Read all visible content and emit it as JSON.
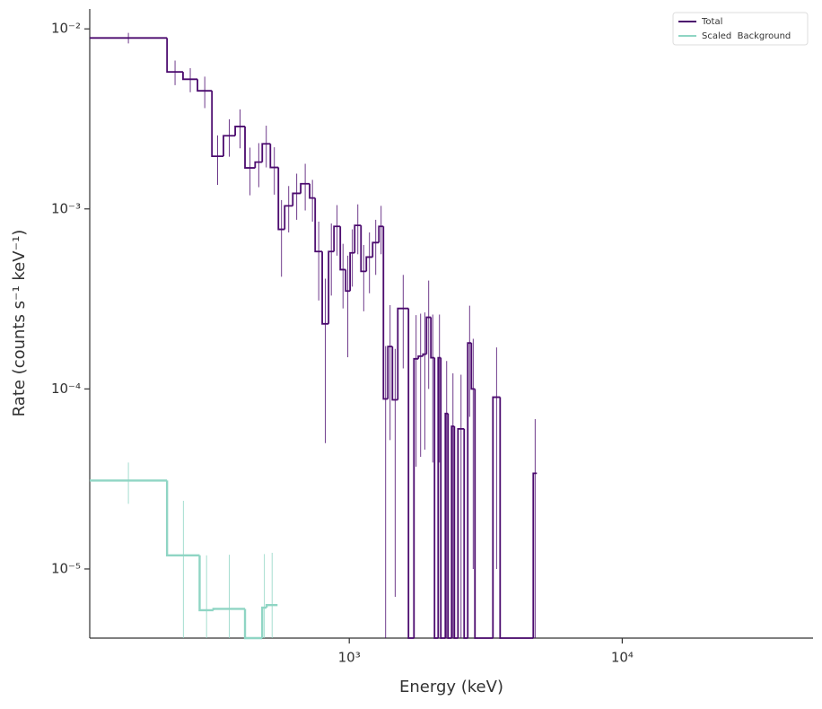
{
  "chart_data": {
    "type": "histogram",
    "xlabel": "Energy (keV)",
    "ylabel": "Rate (counts s⁻¹ keV⁻¹)",
    "xscale": "log",
    "yscale": "log",
    "xlim": [
      112,
      50000
    ],
    "ylim": [
      4.13e-06,
      0.0129
    ],
    "xticks": [
      {
        "value": 1000,
        "label": "10³"
      },
      {
        "value": 10000,
        "label": "10⁴"
      }
    ],
    "yticks": [
      {
        "value": 1e-05,
        "label": "10⁻⁵"
      },
      {
        "value": 0.0001,
        "label": "10⁻⁴"
      },
      {
        "value": 0.001,
        "label": "10⁻³"
      },
      {
        "value": 0.01,
        "label": "10⁻²"
      }
    ],
    "legend": "upper right",
    "series": [
      {
        "name": "Total",
        "color": "#4b0a6e",
        "bins": [
          112,
          215,
          246,
          278,
          314,
          346,
          382,
          415,
          452,
          480,
          514,
          550,
          580,
          621,
          664,
          716,
          750,
          796,
          840,
          879,
          927,
          970,
          1007,
          1047,
          1104,
          1155,
          1218,
          1284,
          1334,
          1385,
          1439,
          1506,
          1648,
          1726,
          1791,
          1862,
          1919,
          1991,
          2053,
          2117,
          2165,
          2249,
          2301,
          2371,
          2427,
          2502,
          2636,
          2717,
          2801,
          2887,
          2977,
          3360,
          3570,
          4722,
          4869
        ],
        "values": [
          0.0089,
          0.00577,
          0.00525,
          0.00453,
          0.00196,
          0.00255,
          0.00287,
          0.00169,
          0.00182,
          0.0023,
          0.0017,
          0.00077,
          0.00104,
          0.00122,
          0.00138,
          0.00115,
          0.00058,
          0.00023,
          0.00058,
          0.0008,
          0.00046,
          0.00035,
          0.00057,
          0.00081,
          0.00045,
          0.00054,
          0.00065,
          0.0008,
          8.8e-05,
          0.000172,
          8.7e-05,
          0.00028,
          0,
          0.000147,
          0.000152,
          0.000156,
          0.00025,
          0.000149,
          0,
          0.000149,
          0,
          7.3e-05,
          0,
          6.2e-05,
          0,
          6e-05,
          0,
          0.00018,
          0.0001,
          0,
          0,
          9e-05,
          0,
          3.4e-05
        ],
        "errors": [
          0.0006,
          0.0009,
          0.0008,
          0.0009,
          0.0006,
          0.0006,
          0.0007,
          0.0005,
          0.0005,
          0.0006,
          0.0005,
          0.00035,
          0.0003,
          0.00035,
          0.0004,
          0.0003,
          0.00027,
          0.00018,
          0.00025,
          0.00025,
          0.00018,
          0.0002,
          0.0002,
          0.00025,
          0.00018,
          0.0002,
          0.00022,
          0.00024,
          8.5e-05,
          0.00012,
          8e-05,
          0.00015,
          null,
          0.00011,
          0.00011,
          0.00011,
          0.00015,
          0.00011,
          null,
          0.00011,
          null,
          7e-05,
          null,
          6e-05,
          null,
          6e-05,
          null,
          0.00011,
          9e-05,
          null,
          null,
          8e-05,
          null,
          3.4e-05
        ]
      },
      {
        "name": "Scaled  Background",
        "color": "#8fd5c4",
        "bins": [
          112,
          215,
          283,
          318,
          415,
          480,
          498,
          546
        ],
        "values": [
          3.1e-05,
          1.19e-05,
          5.9e-06,
          6e-06,
          0,
          6.1e-06,
          6.3e-06
        ],
        "errors": [
          8e-06,
          1.2e-05,
          6e-06,
          6e-06,
          null,
          6e-06,
          6e-06
        ]
      }
    ]
  }
}
